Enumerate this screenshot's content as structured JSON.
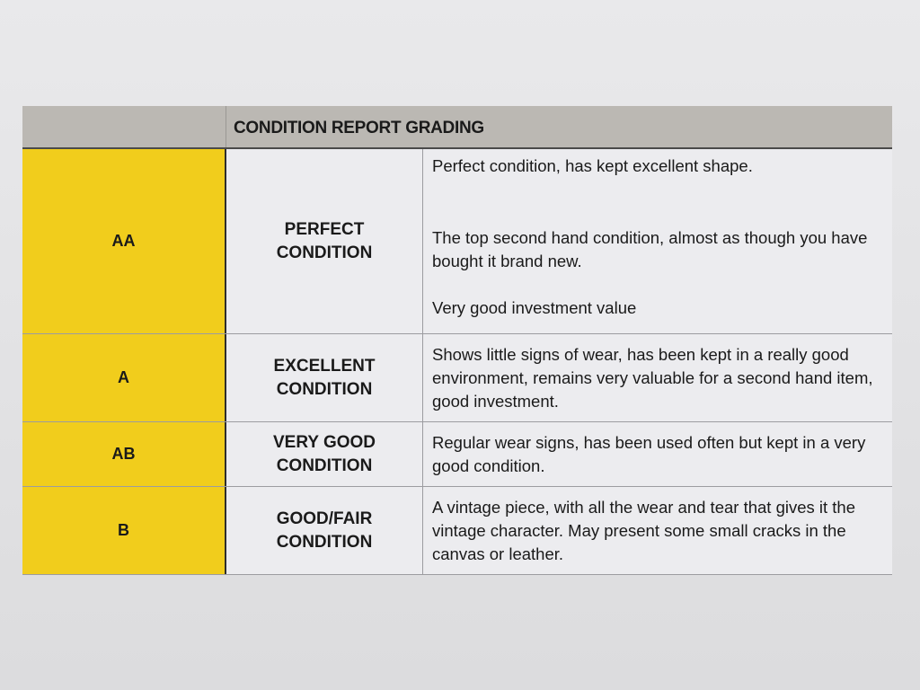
{
  "table": {
    "title": "CONDITION REPORT GRADING",
    "rows": [
      {
        "grade": "AA",
        "condition": "PERFECT CONDITION",
        "description": [
          "Perfect condition, has kept excellent shape.",
          "The top second hand condition, almost as though you have bought it brand new.",
          "Very good investment value"
        ]
      },
      {
        "grade": "A",
        "condition": "EXCELLENT CONDITION",
        "description": [
          "Shows little signs of wear, has been kept in a really good environment, remains very valuable for a second hand item, good investment."
        ]
      },
      {
        "grade": "AB",
        "condition": "VERY GOOD CONDITION",
        "description": [
          "Regular wear signs, has been used often but kept in a very good condition."
        ]
      },
      {
        "grade": "B",
        "condition": "GOOD/FAIR CONDITION",
        "description": [
          "A vintage piece, with all the wear and tear that gives it the vintage character. May present some small cracks in the canvas or leather."
        ]
      }
    ]
  },
  "colors": {
    "grade_fill": "#f1cd1c",
    "header_fill": "#bbb8b3",
    "cell_fill": "#ececef"
  }
}
